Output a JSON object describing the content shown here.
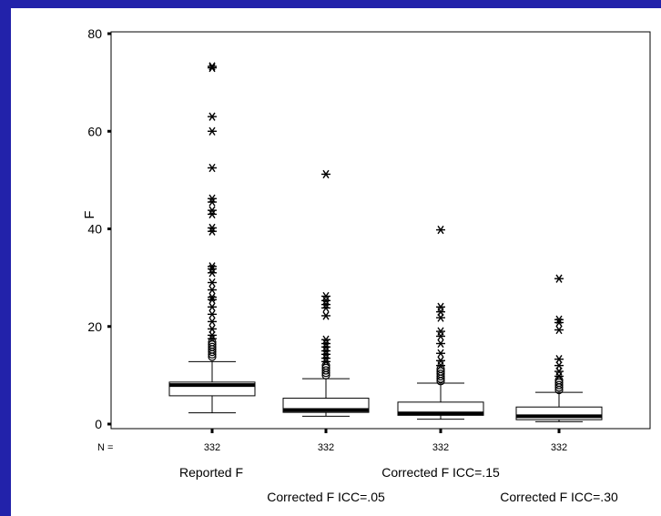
{
  "colors": {
    "frame": "#2222aa",
    "background": "#ffffff",
    "ink": "#000000"
  },
  "chart_data": {
    "type": "boxplot",
    "ylabel": "F",
    "xlabel": "",
    "ylim": [
      0,
      80
    ],
    "yticks": [
      0,
      20,
      40,
      60,
      80
    ],
    "n_label": "N =",
    "grid": false,
    "categories": [
      "Reported F",
      "Corrected F ICC=.05",
      "Corrected F ICC=.15",
      "Corrected F ICC=.30"
    ],
    "boxes": [
      {
        "name": "Reported F",
        "n": "332",
        "whisker_low": 2.3,
        "q1": 5.8,
        "median": 8.0,
        "q3": 8.6,
        "whisker_high": 12.8,
        "outliers_circle": [
          13.8,
          14.3,
          14.8,
          15.3,
          15.8,
          16.3,
          16.8
        ],
        "outliers_star": [
          17.5,
          18.2,
          19.5,
          21.0,
          22.5,
          24.0,
          25.5,
          26.0,
          27.5,
          29.0,
          31.0,
          31.8,
          32.3,
          39.5,
          40.2,
          43.0,
          43.8,
          45.5,
          46.2,
          52.5,
          60.0,
          63.0,
          73.0,
          73.3
        ]
      },
      {
        "name": "Corrected F ICC=.05",
        "n": "332",
        "whisker_low": 1.6,
        "q1": 2.4,
        "median": 2.9,
        "q3": 5.3,
        "whisker_high": 9.3,
        "outliers_circle": [
          10.0,
          10.5,
          11.0,
          11.5,
          12.0
        ],
        "outliers_star": [
          12.8,
          13.5,
          14.3,
          15.0,
          15.8,
          16.5,
          17.3,
          22.2,
          23.8,
          24.5,
          25.3,
          26.2,
          51.2
        ]
      },
      {
        "name": "Corrected F ICC=.15",
        "n": "332",
        "whisker_low": 1.0,
        "q1": 1.8,
        "median": 2.2,
        "q3": 4.5,
        "whisker_high": 8.4,
        "outliers_circle": [
          8.8,
          9.3,
          9.8,
          10.3,
          10.8,
          11.3
        ],
        "outliers_star": [
          12.0,
          13.0,
          14.5,
          16.5,
          18.0,
          19.0,
          21.8,
          23.0,
          24.0,
          39.8
        ]
      },
      {
        "name": "Corrected F ICC=.30",
        "n": "332",
        "whisker_low": 0.5,
        "q1": 0.9,
        "median": 1.6,
        "q3": 3.5,
        "whisker_high": 6.5,
        "outliers_circle": [
          7.0,
          7.5,
          8.0,
          8.5,
          9.0
        ],
        "outliers_star": [
          9.8,
          10.8,
          12.0,
          13.3,
          19.3,
          20.8,
          21.4,
          29.8
        ]
      }
    ]
  }
}
